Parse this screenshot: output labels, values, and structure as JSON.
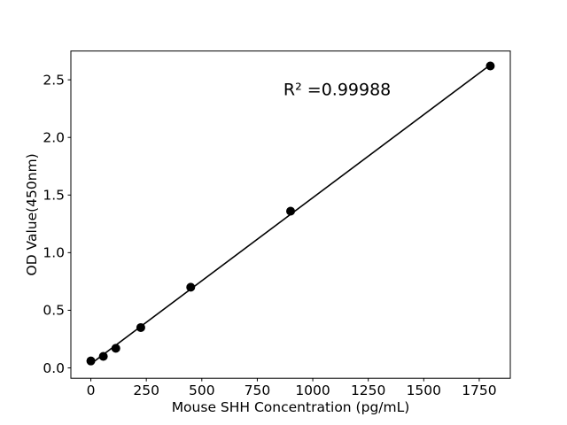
{
  "chart_data": {
    "type": "scatter",
    "title": "",
    "xlabel": "Mouse SHH Concentration (pg/mL)",
    "ylabel": "OD Value(450nm)",
    "x": [
      0,
      56.25,
      112.5,
      225,
      450,
      900,
      1800
    ],
    "y": [
      0.06,
      0.1,
      0.17,
      0.35,
      0.7,
      1.36,
      2.62
    ],
    "fit_line": {
      "x": [
        0,
        1800
      ],
      "y": [
        0.035,
        2.63
      ]
    },
    "annotation": {
      "text": "R² =0.99988",
      "x": 1110,
      "y": 2.42
    },
    "xlim": [
      -90,
      1890
    ],
    "ylim": [
      -0.09,
      2.75
    ],
    "x_ticks": [
      0,
      250,
      500,
      750,
      1000,
      1250,
      1500,
      1750
    ],
    "x_tick_labels": [
      "0",
      "250",
      "500",
      "750",
      "1000",
      "1250",
      "1500",
      "1750"
    ],
    "y_ticks": [
      0.0,
      0.5,
      1.0,
      1.5,
      2.0,
      2.5
    ],
    "y_tick_labels": [
      "0.0",
      "0.5",
      "1.0",
      "1.5",
      "2.0",
      "2.5"
    ],
    "grid": false,
    "legend": null,
    "marker_color": "#000000",
    "line_color": "#000000",
    "axis_color": "#000000",
    "background_color": "#ffffff"
  }
}
